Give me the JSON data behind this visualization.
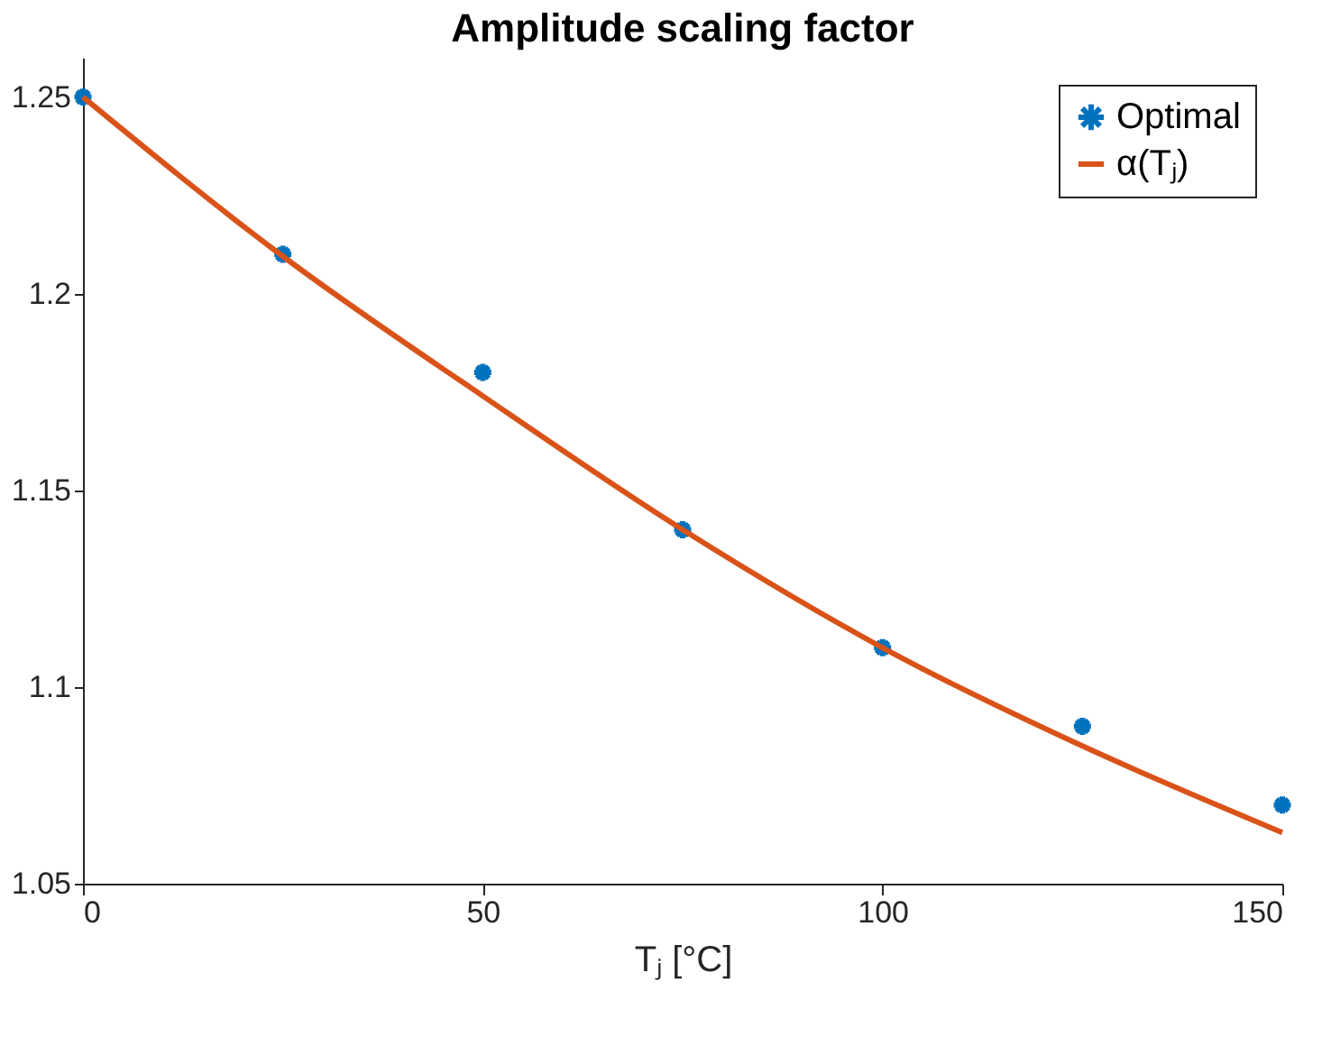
{
  "chart_data": {
    "type": "scatter",
    "title": "Amplitude scaling factor",
    "xlabel": "Tⱼ [°C]",
    "xlim": [
      0,
      150
    ],
    "ylim": [
      1.05,
      1.26
    ],
    "xticks": [
      0,
      50,
      100,
      150
    ],
    "yticks": [
      1.05,
      {
        "value": 1.1,
        "label": "1.1"
      },
      1.15,
      {
        "value": 1.2,
        "label": "1.2"
      },
      1.25
    ],
    "grid": false,
    "legend": "top right",
    "series": [
      {
        "name": "Optimal",
        "marker": "cross",
        "color": "#0072bd",
        "x": [
          0,
          25,
          50,
          75,
          100,
          125,
          150
        ],
        "values": [
          1.25,
          1.21,
          1.18,
          1.14,
          1.11,
          1.09,
          1.07
        ]
      },
      {
        "name": "α(Tⱼ)",
        "type": "line",
        "line_style": "solid",
        "color": "#d95319",
        "x": [
          0,
          25,
          50,
          75,
          100,
          125,
          150
        ],
        "values": [
          1.25,
          1.2095,
          1.174,
          1.14,
          1.11,
          1.085,
          1.063
        ]
      }
    ]
  }
}
